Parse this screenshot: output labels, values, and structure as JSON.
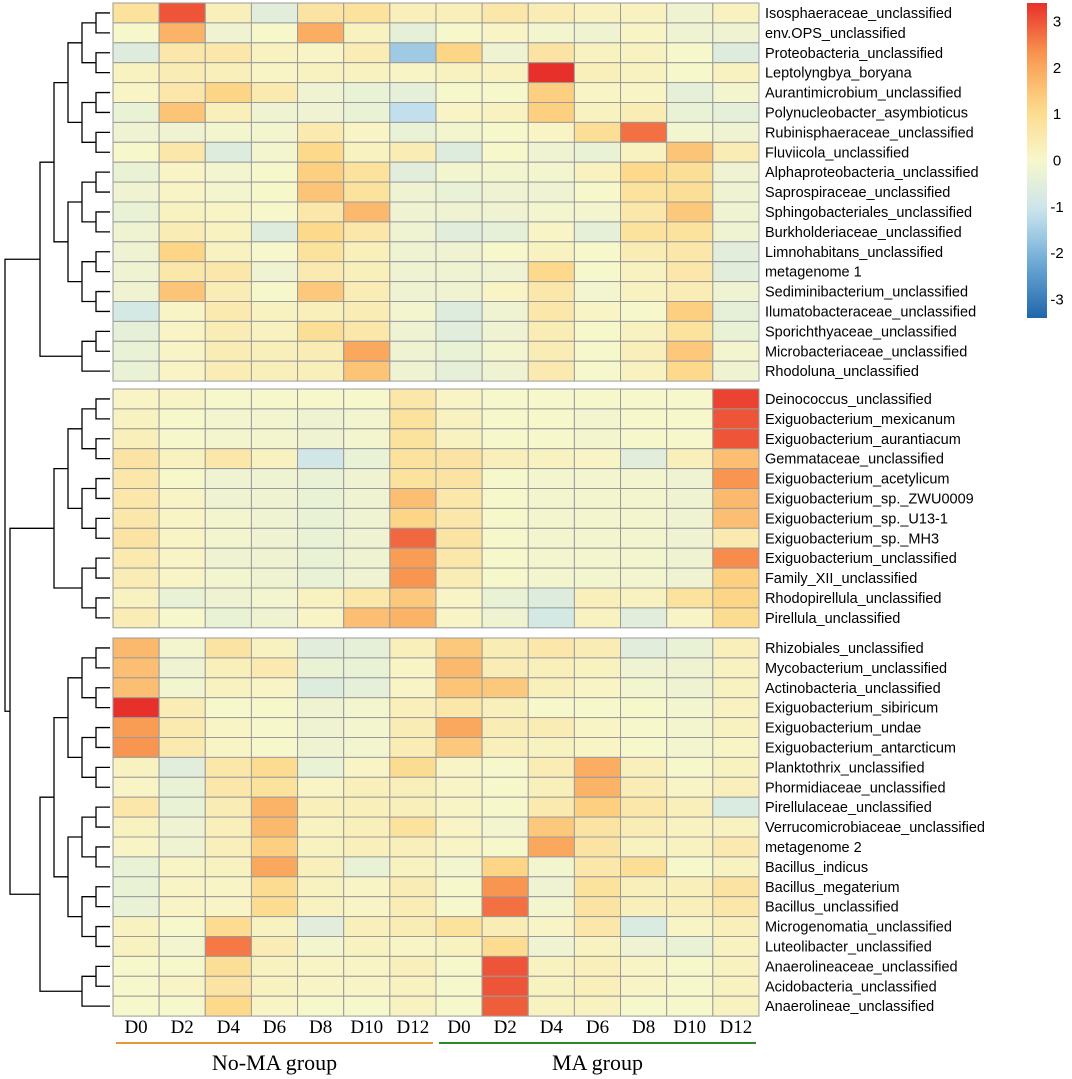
{
  "chart_data": {
    "type": "heatmap",
    "title": "",
    "columns": [
      "D0",
      "D2",
      "D4",
      "D6",
      "D8",
      "D10",
      "D12",
      "D0",
      "D2",
      "D4",
      "D6",
      "D8",
      "D10",
      "D12"
    ],
    "groups": [
      {
        "name": "No-MA group",
        "color": "#e8963a",
        "start": 0,
        "end": 6
      },
      {
        "name": "MA group",
        "color": "#2a8a2a",
        "start": 7,
        "end": 13
      }
    ],
    "color_scale": {
      "min": -3.4,
      "max": 3.4,
      "low": "#2166ac",
      "mid": "#f7f7cc",
      "high": "#e8302a"
    },
    "legend_ticks": [
      3,
      2,
      1,
      0,
      -1,
      -2,
      -3
    ],
    "clusters": [
      {
        "rows": [
          "Isosphaeraceae_unclassified",
          "env.OPS_unclassified",
          "Proteobacteria_unclassified",
          "Leptolyngbya_boryana",
          "Aurantimicrobium_unclassified",
          "Polynucleobacter_asymbioticus",
          "Rubinisphaeraceae_unclassified",
          "Fluviicola_unclassified",
          "Alphaproteobacteria_unclassified",
          "Saprospiraceae_unclassified",
          "Sphingobacteriales_unclassified",
          "Burkholderiaceae_unclassified",
          "Limnohabitans_unclassified",
          "metagenome 1",
          "Sediminibacterium_unclassified",
          "Ilumatobacteraceae_unclassified",
          "Sporichthyaceae_unclassified",
          "Microbacteriaceae_unclassified",
          "Rhodoluna_unclassified"
        ],
        "values": [
          [
            0.8,
            3.0,
            0.3,
            -0.5,
            0.7,
            0.8,
            0.3,
            0.3,
            0.6,
            0.4,
            0.2,
            0.2,
            -0.2,
            0.2
          ],
          [
            0.0,
            1.8,
            -0.2,
            0.0,
            1.9,
            0.2,
            -0.4,
            0.0,
            0.1,
            -0.1,
            -0.2,
            0.1,
            -0.2,
            -0.2
          ],
          [
            -0.6,
            0.6,
            0.6,
            0.2,
            0.1,
            0.4,
            -1.6,
            1.2,
            -0.2,
            0.7,
            0.2,
            0.2,
            0.0,
            -0.6
          ],
          [
            0.2,
            0.4,
            0.3,
            0.1,
            0.2,
            0.2,
            0.1,
            0.2,
            0.2,
            3.4,
            0.3,
            0.2,
            0.0,
            0.2
          ],
          [
            0.1,
            0.6,
            1.2,
            0.5,
            -0.2,
            -0.3,
            -0.4,
            0.0,
            0.0,
            1.3,
            0.1,
            0.1,
            -0.4,
            -0.1
          ],
          [
            -0.3,
            1.5,
            0.3,
            -0.2,
            -0.2,
            -0.3,
            -1.2,
            0.1,
            0.2,
            1.3,
            0.2,
            0.4,
            -0.3,
            -0.4
          ],
          [
            -0.2,
            -0.2,
            -0.1,
            -0.1,
            0.5,
            0.1,
            -0.3,
            -0.1,
            0.0,
            0.1,
            0.9,
            2.7,
            -0.1,
            -0.2
          ],
          [
            0.0,
            0.6,
            -0.6,
            -0.1,
            1.1,
            0.2,
            0.4,
            -0.6,
            0.0,
            -0.2,
            -0.3,
            0.2,
            1.5,
            0.4
          ],
          [
            -0.3,
            0.1,
            -0.1,
            0.0,
            1.3,
            0.8,
            -0.5,
            -0.1,
            -0.1,
            -0.1,
            0.2,
            1.1,
            0.9,
            -0.2
          ],
          [
            -0.2,
            0.1,
            -0.1,
            0.0,
            1.5,
            0.8,
            -0.2,
            -0.3,
            -0.2,
            -0.2,
            0.0,
            0.8,
            0.9,
            -0.2
          ],
          [
            -0.3,
            0.2,
            0.1,
            0.0,
            0.6,
            1.7,
            -0.2,
            -0.2,
            -0.2,
            -0.1,
            -0.1,
            0.6,
            1.4,
            -0.2
          ],
          [
            -0.2,
            0.4,
            0.2,
            -0.6,
            1.1,
            0.6,
            -0.2,
            -0.5,
            -0.4,
            0.1,
            -0.4,
            0.8,
            0.8,
            -0.2
          ],
          [
            -0.2,
            1.2,
            0.2,
            0.0,
            0.8,
            0.3,
            -0.2,
            -0.2,
            0.0,
            0.2,
            0.0,
            0.4,
            0.6,
            -0.5
          ],
          [
            -0.2,
            0.6,
            0.6,
            -0.2,
            0.5,
            0.3,
            -0.2,
            -0.2,
            -0.2,
            1.1,
            0.0,
            0.2,
            0.6,
            -0.5
          ],
          [
            -0.2,
            1.5,
            0.4,
            0.0,
            1.4,
            0.4,
            -0.2,
            -0.2,
            0.1,
            0.6,
            -0.1,
            0.2,
            0.4,
            -0.2
          ],
          [
            -0.8,
            0.1,
            0.5,
            0.2,
            0.3,
            0.4,
            -0.1,
            -0.6,
            -0.2,
            0.6,
            0.1,
            0.0,
            1.3,
            -0.4
          ],
          [
            -0.4,
            0.1,
            0.4,
            0.2,
            0.9,
            0.6,
            -0.2,
            -0.5,
            -0.2,
            0.4,
            0.0,
            0.2,
            0.8,
            -0.3
          ],
          [
            -0.3,
            0.1,
            0.4,
            0.3,
            0.4,
            2.0,
            -0.2,
            -0.3,
            -0.1,
            0.4,
            0.0,
            0.3,
            1.4,
            -0.1
          ],
          [
            -0.3,
            0.1,
            0.4,
            0.3,
            0.3,
            1.5,
            -0.2,
            -0.4,
            -0.2,
            0.5,
            0.0,
            0.2,
            1.1,
            -0.2
          ]
        ]
      },
      {
        "rows": [
          "Deinococcus_unclassified",
          "Exiguobacterium_mexicanum",
          "Exiguobacterium_aurantiacum",
          "Gemmataceae_unclassified",
          "Exiguobacterium_acetylicum",
          "Exiguobacterium_sp._ZWU0009",
          "Exiguobacterium_sp._U13-1",
          "Exiguobacterium_sp._MH3",
          "Exiguobacterium_unclassified",
          "Family_XII_unclassified",
          "Rhodopirellula_unclassified",
          "Pirellula_unclassified"
        ],
        "values": [
          [
            0.1,
            0.1,
            0.0,
            0.0,
            0.0,
            0.0,
            0.6,
            0.1,
            0.0,
            0.0,
            0.0,
            0.0,
            0.0,
            3.2
          ],
          [
            0.2,
            0.0,
            -0.1,
            -0.1,
            -0.2,
            -0.1,
            0.8,
            0.2,
            0.0,
            0.0,
            -0.1,
            0.0,
            0.0,
            3.0
          ],
          [
            0.3,
            0.0,
            -0.1,
            -0.1,
            -0.2,
            -0.1,
            0.8,
            0.2,
            0.0,
            0.0,
            -0.1,
            0.0,
            0.0,
            3.0
          ],
          [
            0.7,
            0.2,
            0.6,
            0.2,
            -0.9,
            -0.3,
            0.8,
            0.7,
            0.3,
            0.2,
            0.1,
            -0.5,
            0.3,
            1.6
          ],
          [
            0.6,
            0.0,
            -0.2,
            -0.2,
            -0.3,
            -0.2,
            0.8,
            0.7,
            0.0,
            -0.1,
            -0.1,
            -0.1,
            -0.2,
            2.3
          ],
          [
            0.6,
            0.1,
            -0.2,
            -0.2,
            -0.3,
            -0.2,
            1.6,
            0.6,
            0.0,
            -0.1,
            -0.1,
            -0.1,
            -0.2,
            1.7
          ],
          [
            0.6,
            0.1,
            -0.1,
            -0.2,
            -0.3,
            -0.2,
            1.2,
            0.6,
            0.0,
            -0.1,
            -0.1,
            -0.1,
            -0.2,
            1.6
          ],
          [
            0.7,
            0.1,
            -0.1,
            -0.2,
            -0.3,
            -0.2,
            2.8,
            0.7,
            0.0,
            -0.1,
            -0.1,
            -0.1,
            -0.2,
            0.5
          ],
          [
            0.5,
            0.1,
            -0.2,
            -0.2,
            -0.3,
            -0.2,
            2.2,
            0.6,
            0.0,
            -0.1,
            -0.1,
            -0.1,
            -0.2,
            2.4
          ],
          [
            0.4,
            0.1,
            -0.1,
            -0.2,
            -0.3,
            -0.2,
            2.3,
            0.4,
            0.0,
            -0.1,
            -0.1,
            -0.1,
            -0.2,
            1.3
          ],
          [
            0.2,
            -0.3,
            -0.2,
            -0.1,
            0.2,
            0.6,
            1.4,
            0.1,
            -0.3,
            -0.6,
            0.3,
            0.2,
            0.8,
            1.2
          ],
          [
            0.4,
            0.0,
            -0.3,
            -0.2,
            0.1,
            1.6,
            1.8,
            0.1,
            -0.2,
            -0.8,
            0.2,
            -0.5,
            0.1,
            1.0
          ]
        ]
      },
      {
        "rows": [
          "Rhizobiales_unclassified",
          "Mycobacterium_unclassified",
          "Actinobacteria_unclassified",
          "Exiguobacterium_sibiricum",
          "Exiguobacterium_undae",
          "Exiguobacterium_antarcticum",
          "Planktothrix_unclassified",
          "Phormidiaceae_unclassified",
          "Pirellulaceae_unclassified",
          "Verrucomicrobiaceae_unclassified",
          "metagenome 2",
          "Bacillus_indicus",
          "Bacillus_megaterium",
          "Bacillus_unclassified",
          "Microgenomatia_unclassified",
          "Luteolibacter_unclassified",
          "Anaerolineaceae_unclassified",
          "Acidobacteria_unclassified",
          "Anaerolineae_unclassified"
        ],
        "values": [
          [
            1.7,
            -0.1,
            0.7,
            0.2,
            -0.5,
            -0.4,
            0.3,
            1.4,
            0.4,
            0.6,
            0.4,
            -0.5,
            -0.3,
            0.3
          ],
          [
            1.6,
            -0.2,
            0.3,
            0.5,
            -0.3,
            -0.3,
            0.1,
            1.7,
            0.4,
            0.3,
            0.2,
            -0.2,
            -0.2,
            0.2
          ],
          [
            1.6,
            -0.1,
            0.2,
            0.1,
            -0.6,
            -0.4,
            0.1,
            1.5,
            1.4,
            0.3,
            0.1,
            -0.1,
            -0.2,
            0.2
          ],
          [
            3.4,
            0.4,
            0.0,
            0.0,
            -0.2,
            -0.1,
            0.3,
            0.6,
            0.3,
            0.0,
            0.0,
            0.0,
            -0.1,
            0.2
          ],
          [
            2.2,
            0.5,
            0.1,
            0.0,
            -0.2,
            -0.1,
            0.4,
            2.0,
            0.4,
            0.4,
            0.1,
            0.0,
            -0.1,
            0.2
          ],
          [
            2.3,
            0.5,
            0.1,
            0.0,
            -0.2,
            -0.1,
            0.4,
            1.4,
            0.3,
            0.2,
            0.1,
            0.0,
            -0.1,
            0.1
          ],
          [
            0.2,
            -0.5,
            0.6,
            1.0,
            -0.3,
            0.1,
            1.0,
            0.1,
            0.0,
            0.4,
            1.9,
            0.3,
            0.0,
            0.2
          ],
          [
            0.1,
            -0.3,
            0.6,
            0.8,
            0.1,
            0.3,
            0.3,
            0.1,
            0.0,
            0.3,
            1.8,
            0.4,
            0.1,
            0.3
          ],
          [
            0.6,
            -0.3,
            0.4,
            1.8,
            0.3,
            0.3,
            0.3,
            0.1,
            0.0,
            0.5,
            1.3,
            0.6,
            0.3,
            -0.7
          ],
          [
            0.2,
            -0.2,
            0.3,
            1.7,
            0.2,
            0.3,
            0.8,
            0.1,
            -0.1,
            1.4,
            0.7,
            0.4,
            0.2,
            0.2
          ],
          [
            0.1,
            -0.2,
            0.3,
            1.3,
            0.2,
            0.3,
            0.3,
            0.1,
            0.0,
            2.0,
            0.7,
            0.2,
            0.2,
            0.5
          ],
          [
            -0.3,
            0.1,
            0.2,
            2.0,
            0.3,
            -0.3,
            0.2,
            -0.1,
            1.2,
            -0.1,
            0.6,
            0.9,
            0.0,
            0.2
          ],
          [
            -0.3,
            0.1,
            0.1,
            1.0,
            0.2,
            0.1,
            0.4,
            0.0,
            2.3,
            -0.2,
            0.8,
            0.3,
            0.3,
            0.7
          ],
          [
            -0.3,
            0.1,
            0.1,
            1.0,
            0.2,
            0.1,
            0.4,
            0.0,
            2.7,
            -0.1,
            0.7,
            0.3,
            0.3,
            0.6
          ],
          [
            0.2,
            0.0,
            1.0,
            0.2,
            -0.5,
            0.3,
            0.4,
            0.8,
            0.4,
            0.1,
            0.6,
            -0.7,
            0.1,
            0.3
          ],
          [
            0.2,
            -0.1,
            2.6,
            0.4,
            -0.1,
            0.2,
            0.1,
            0.2,
            1.0,
            -0.2,
            0.2,
            -0.2,
            -0.3,
            0.2
          ],
          [
            0.0,
            0.0,
            0.9,
            0.2,
            0.1,
            0.1,
            0.3,
            0.0,
            3.0,
            0.2,
            0.3,
            0.1,
            0.0,
            0.2
          ],
          [
            0.0,
            0.1,
            0.7,
            0.2,
            0.1,
            0.1,
            0.2,
            0.0,
            3.0,
            0.2,
            0.3,
            0.1,
            0.0,
            0.2
          ],
          [
            0.0,
            0.0,
            1.1,
            0.1,
            0.0,
            0.0,
            0.2,
            0.0,
            2.9,
            0.2,
            0.2,
            0.0,
            0.0,
            0.2
          ]
        ]
      }
    ]
  }
}
